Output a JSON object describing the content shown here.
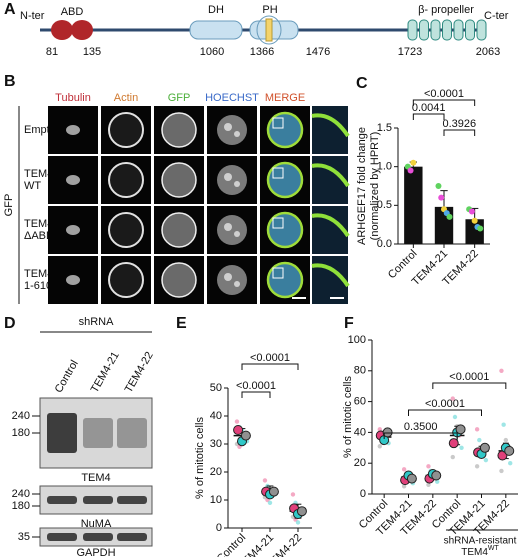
{
  "panel_labels": [
    "A",
    "B",
    "C",
    "D",
    "E",
    "F"
  ],
  "domain_diagram": {
    "n_term": "N-ter",
    "c_term": "C-ter",
    "domains": [
      "ABD",
      "DH",
      "PH",
      "β- propeller"
    ],
    "positions": [
      81,
      135,
      1060,
      1366,
      1476,
      1723,
      2063
    ]
  },
  "imaging": {
    "columns": [
      "Tubulin",
      "Actin",
      "GFP",
      "HOECHST",
      "MERGE"
    ],
    "side_label": "GFP",
    "rows": [
      [
        "Empty"
      ],
      [
        "TEM4-",
        "WT"
      ],
      [
        "TEM4-",
        "ΔABD"
      ],
      [
        "TEM4-",
        "1-610"
      ]
    ]
  },
  "western_blot": {
    "header": "shRNA",
    "lanes": [
      "Control",
      "TEM4-21",
      "TEM4-22"
    ],
    "blots": [
      {
        "name": "TEM4",
        "markers": [
          "240",
          "180"
        ]
      },
      {
        "name": "NuMA",
        "markers": [
          "240",
          "180"
        ]
      },
      {
        "name": "GAPDH",
        "markers": [
          "35"
        ]
      }
    ]
  },
  "chart_data": [
    {
      "type": "bar",
      "ylabel": [
        "ARHGEF17 fold change",
        "(normalized by HPRT)"
      ],
      "categories": [
        "Control",
        "TEM4-21",
        "TEM4-22"
      ],
      "values": [
        1.0,
        0.48,
        0.32
      ],
      "errors": [
        0.06,
        0.21,
        0.14
      ],
      "color": "#111111",
      "points": [
        [
          1.0,
          0.95,
          1.05
        ],
        [
          0.75,
          0.6,
          0.45,
          0.4,
          0.35
        ],
        [
          0.45,
          0.42,
          0.3,
          0.22,
          0.2
        ]
      ],
      "point_colors": [
        "#5fd35f",
        "#e84fd8",
        "#f2d23c",
        "#4fa8e8"
      ],
      "ylim": [
        0,
        1.5
      ],
      "yticks": [
        {
          "value": 0,
          "label": "0.0"
        },
        0.5,
        {
          "value": 1,
          "label": "1.0"
        },
        1.5
      ],
      "annotations": [
        "<0.0001",
        "0.0041",
        "0.3926"
      ]
    },
    {
      "type": "dot",
      "ylabel": "% of mitotic cells",
      "categories": [
        "Control",
        "TEM4-21",
        "TEM4-22"
      ],
      "values": [
        33,
        13,
        6
      ],
      "errors": [
        2.5,
        2,
        2.5
      ],
      "replicates": [
        [
          35,
          31,
          33
        ],
        [
          13,
          12,
          13
        ],
        [
          7,
          5,
          6
        ]
      ],
      "replicate_colors": [
        "#e0407a",
        "#30c8c8",
        "#909090"
      ],
      "points": [
        [
          38,
          36,
          34,
          33,
          31,
          30,
          29,
          35
        ],
        [
          17,
          15,
          14,
          13,
          12,
          11,
          10,
          9
        ],
        [
          12,
          9,
          7,
          6,
          5,
          4,
          3,
          2
        ]
      ],
      "point_colors": [
        "#f08cb0",
        "#7fdede",
        "#b8b8b8"
      ],
      "ylim": [
        0,
        50
      ],
      "yticks": [
        0,
        10,
        20,
        30,
        40,
        50
      ],
      "annotations": [
        "<0.0001",
        "<0.0001"
      ]
    },
    {
      "type": "dot",
      "ylabel": "% of mitotic cells",
      "categories": [
        "Control",
        "TEM4-21",
        "TEM4-22",
        "Control",
        "TEM4-21",
        "TEM4-22"
      ],
      "values": [
        37,
        11,
        12,
        38,
        28,
        28
      ],
      "errors": [
        3,
        2,
        2,
        6,
        3,
        5
      ],
      "replicates": [
        [
          38,
          35,
          40
        ],
        [
          9,
          12,
          10
        ],
        [
          10,
          13,
          12
        ],
        [
          33,
          40,
          42
        ],
        [
          27,
          26,
          30
        ],
        [
          25,
          30,
          28
        ]
      ],
      "replicate_colors": [
        "#e0407a",
        "#30c8c8",
        "#909090"
      ],
      "points": [
        [
          42,
          39,
          37,
          35,
          33,
          31
        ],
        [
          16,
          13,
          11,
          9,
          7,
          5
        ],
        [
          18,
          15,
          12,
          10,
          8,
          6
        ],
        [
          62,
          50,
          44,
          38,
          30,
          24
        ],
        [
          42,
          35,
          30,
          26,
          22,
          18
        ],
        [
          80,
          45,
          35,
          28,
          20,
          15
        ]
      ],
      "point_colors": [
        "#f08cb0",
        "#7fdede",
        "#b8b8b8"
      ],
      "ylim": [
        0,
        100
      ],
      "yticks": [
        0,
        20,
        40,
        60,
        80,
        100
      ],
      "annotations": [
        "0.3500",
        "<0.0001",
        "<0.0001"
      ],
      "group_label": "shRNA-resistant",
      "group_label_2": "TEM4",
      "group_label_sup": "WT"
    }
  ]
}
